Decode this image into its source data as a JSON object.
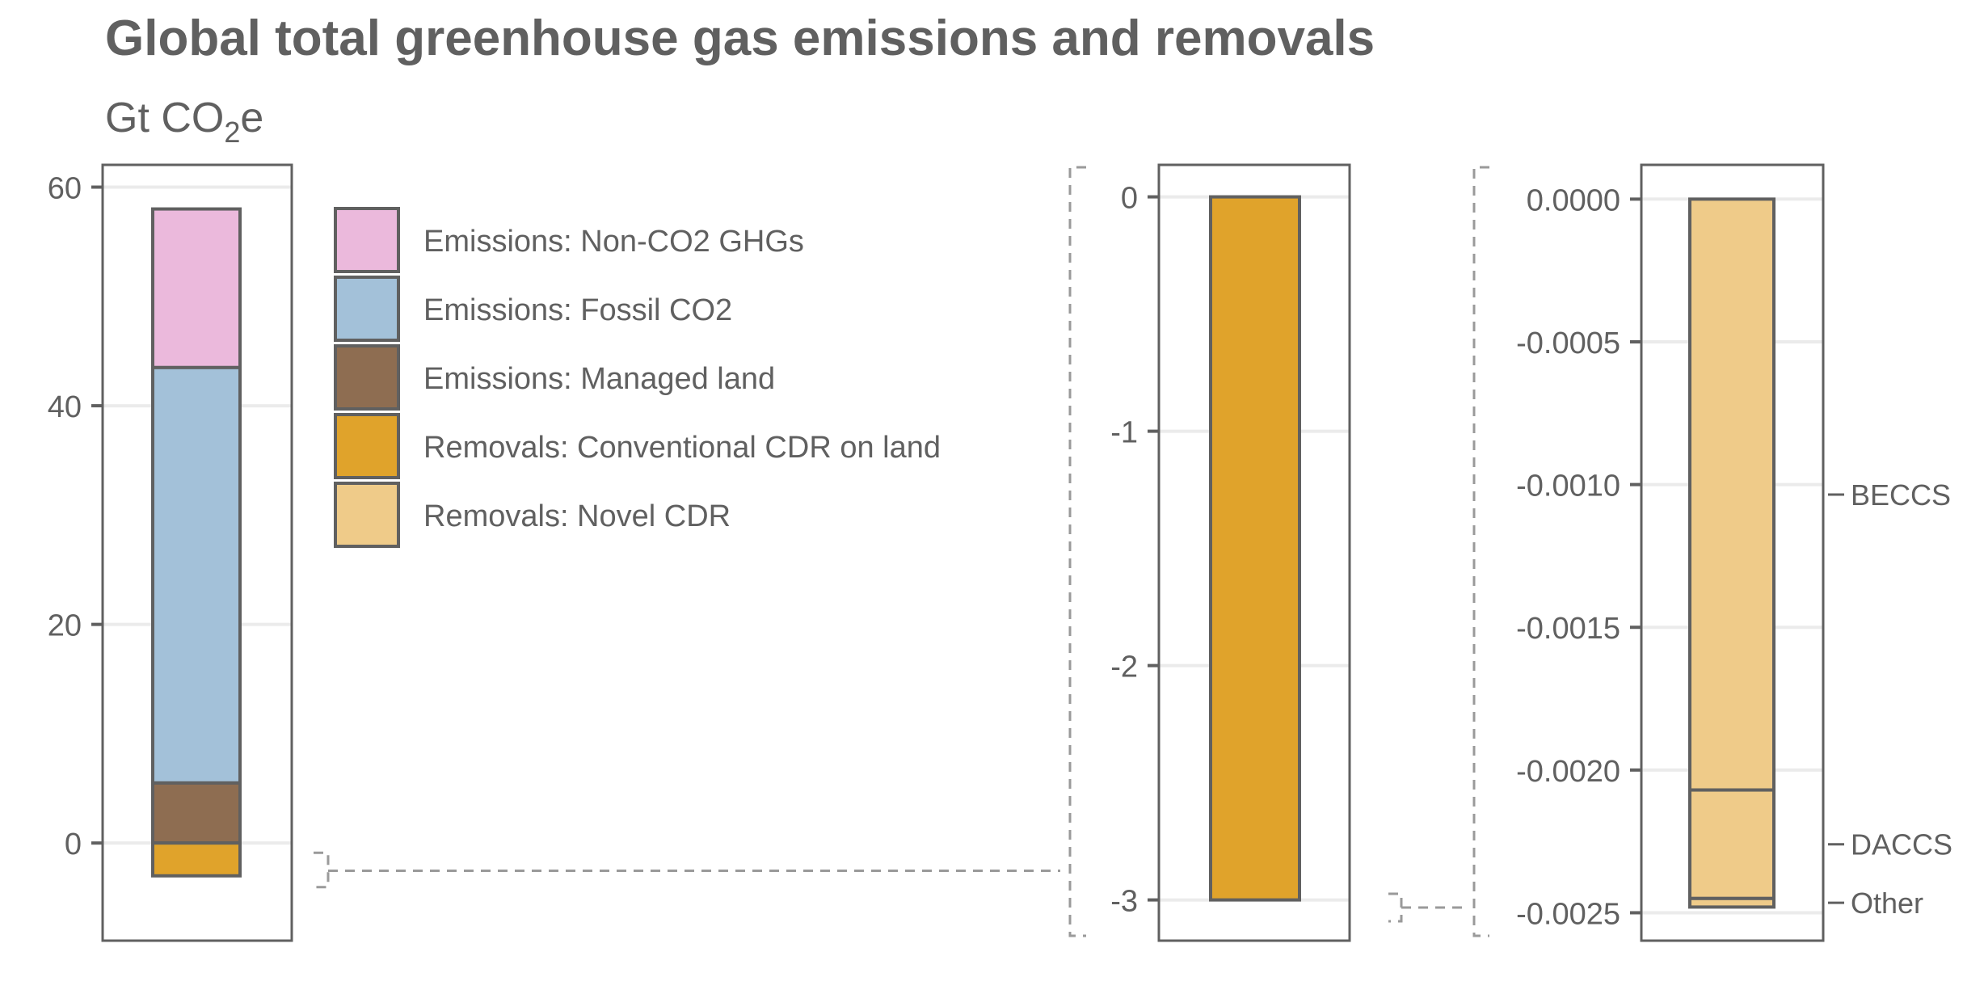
{
  "title": "Global total greenhouse gas emissions and removals",
  "subtitle": {
    "prefix": "Gt CO",
    "sub": "2",
    "suffix": "e"
  },
  "colors": {
    "text": "#606060",
    "frame": "#606060",
    "grid": "#ebebeb",
    "bracket": "#9a9a9a",
    "non_co2": "#ebb9dc",
    "fossil_co2": "#a3c1d9",
    "managed_land": "#8e6d51",
    "conventional_cdr": "#e0a32b",
    "novel_cdr": "#efcb89"
  },
  "legend": [
    {
      "label": "Emissions: Non-CO2 GHGs",
      "color": "#ebb9dc"
    },
    {
      "label": "Emissions: Fossil CO2",
      "color": "#a3c1d9"
    },
    {
      "label": "Emissions: Managed land",
      "color": "#8e6d51"
    },
    {
      "label": "Removals: Conventional CDR on land",
      "color": "#e0a32b"
    },
    {
      "label": "Removals: Novel CDR",
      "color": "#efcb89"
    }
  ],
  "chart_data": [
    {
      "type": "bar",
      "stacked": true,
      "ylim": [
        -5.9,
        61
      ],
      "yticks": [
        0,
        20,
        40,
        60
      ],
      "ytick_labels": [
        "0",
        "20",
        "40",
        "60"
      ],
      "series": [
        {
          "name": "Emissions: Managed land",
          "values": [
            5.5
          ]
        },
        {
          "name": "Emissions: Fossil CO2",
          "values": [
            38
          ]
        },
        {
          "name": "Emissions: Non-CO2 GHGs",
          "values": [
            14.5
          ]
        },
        {
          "name": "Removals: Conventional CDR on land",
          "values": [
            -3.0
          ]
        },
        {
          "name": "Removals: Novel CDR",
          "values": [
            -0.0025
          ]
        }
      ],
      "grid": true,
      "legend_position": "right"
    },
    {
      "type": "bar",
      "stacked": true,
      "ylim": [
        -3.16,
        0.14
      ],
      "yticks": [
        0,
        -1,
        -2,
        -3
      ],
      "ytick_labels": [
        "0",
        "-1",
        "-2",
        "-3"
      ],
      "series": [
        {
          "name": "Removals: Conventional CDR on land",
          "values": [
            -3.0
          ]
        }
      ],
      "grid": true
    },
    {
      "type": "bar",
      "stacked": true,
      "ylim": [
        -0.00251,
        0.00012
      ],
      "yticks": [
        0,
        -0.0005,
        -0.001,
        -0.0015,
        -0.002,
        -0.0025
      ],
      "ytick_labels": [
        "0.0000",
        "-0.0005",
        "-0.0010",
        "-0.0015",
        "-0.0020",
        "-0.0025"
      ],
      "series": [
        {
          "name": "BECCS",
          "values": [
            -0.00207
          ]
        },
        {
          "name": "DACCS",
          "values": [
            -0.00038
          ]
        },
        {
          "name": "Other",
          "values": [
            -3e-05
          ]
        }
      ],
      "annotations": [
        "BECCS",
        "DACCS",
        "Other"
      ],
      "grid": true
    }
  ]
}
